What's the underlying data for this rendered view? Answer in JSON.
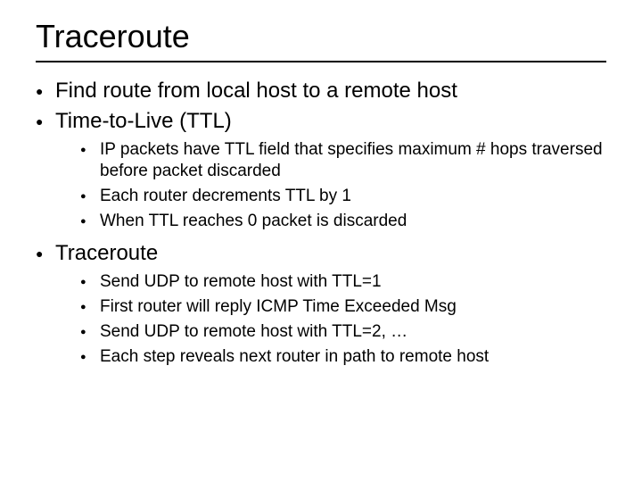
{
  "title": "Traceroute",
  "title_fontsize": 36,
  "body_fontsize_l1": 24,
  "body_fontsize_l2": 19,
  "bullet_color": "#000000",
  "text_color": "#000000",
  "background_color": "#ffffff",
  "underline_color": "#000000",
  "sections": [
    {
      "text": "Find route from local host to a remote host"
    },
    {
      "text": "Time-to-Live (TTL)",
      "children": [
        "IP packets have TTL field that specifies maximum # hops traversed before packet discarded",
        "Each router decrements TTL by 1",
        "When TTL reaches 0 packet is discarded"
      ]
    },
    {
      "text": "Traceroute",
      "children": [
        "Send UDP to remote host with TTL=1",
        "First router will reply ICMP Time Exceeded Msg",
        "Send UDP to remote host with TTL=2, …",
        "Each step reveals next router in path to remote host"
      ]
    }
  ]
}
